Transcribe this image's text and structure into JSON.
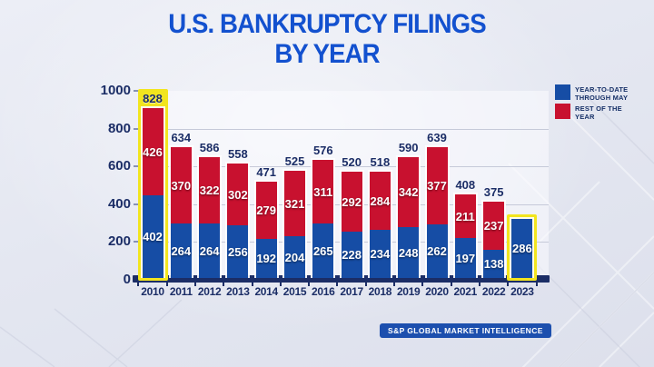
{
  "title": {
    "line1": "U.S. BANKRUPTCY FILINGS",
    "line2": "BY YEAR"
  },
  "source": {
    "label": "S&P GLOBAL MARKET INTELLIGENCE"
  },
  "colors": {
    "title_blue": "#1351cf",
    "bar_blue": "#164da5",
    "bar_red": "#c8112f",
    "highlight_yellow": "#f2e51e",
    "axis_navy": "#1b2d66",
    "source_badge_blue": "#1c4fae"
  },
  "chart_data": {
    "type": "bar",
    "stacked": true,
    "title": "U.S. BANKRUPTCY FILINGS BY YEAR",
    "categories": [
      "2010",
      "2011",
      "2012",
      "2013",
      "2014",
      "2015",
      "2016",
      "2017",
      "2018",
      "2019",
      "2020",
      "2021",
      "2022",
      "2023"
    ],
    "series": [
      {
        "name": "YEAR-TO-DATE THROUGH MAY",
        "color": "#164da5",
        "values": [
          402,
          264,
          264,
          256,
          192,
          204,
          265,
          228,
          234,
          248,
          262,
          197,
          138,
          286
        ]
      },
      {
        "name": "REST OF THE YEAR",
        "color": "#c8112f",
        "values": [
          426,
          370,
          322,
          302,
          279,
          321,
          311,
          292,
          284,
          342,
          377,
          211,
          237,
          null
        ]
      }
    ],
    "totals": [
      828,
      634,
      586,
      558,
      471,
      525,
      576,
      520,
      518,
      590,
      639,
      408,
      375,
      286
    ],
    "highlighted_categories": [
      "2010",
      "2023"
    ],
    "xlabel": "",
    "ylabel": "",
    "ylim": [
      0,
      1000
    ],
    "yticks": [
      0,
      200,
      400,
      600,
      800,
      1000
    ],
    "grid": true,
    "legend_position": "top-right"
  }
}
